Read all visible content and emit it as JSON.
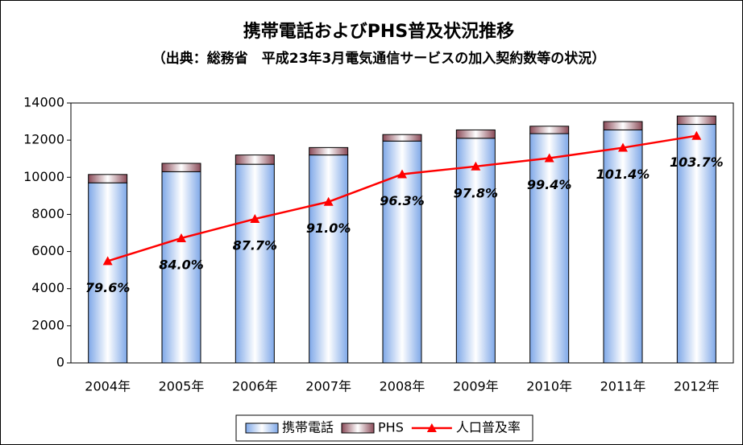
{
  "chart_data": {
    "type": "bar-line",
    "title": "携帯電話およびPHS普及状況推移",
    "subtitle": "（出典：総務省　平成23年3月電気通信サービスの加入契約数等の状況）",
    "categories": [
      "2004年",
      "2005年",
      "2006年",
      "2007年",
      "2008年",
      "2009年",
      "2010年",
      "2011年",
      "2012年"
    ],
    "series": [
      {
        "name": "携帯電話",
        "color": "#c6dcf7",
        "type": "bar",
        "values": [
          9700,
          10300,
          10700,
          11200,
          11950,
          12100,
          12350,
          12550,
          12850
        ]
      },
      {
        "name": "PHS",
        "color": "#c9a0a8",
        "type": "bar",
        "values": [
          450,
          450,
          500,
          400,
          350,
          450,
          400,
          450,
          450
        ]
      },
      {
        "name": "人口普及率",
        "color": "#ff0000",
        "type": "line",
        "axis": "y2",
        "values": [
          79.6,
          84.0,
          87.7,
          91.0,
          96.3,
          97.8,
          99.4,
          101.4,
          103.7
        ],
        "value_labels": [
          "79.6%",
          "84.0%",
          "87.7%",
          "91.0%",
          "96.3%",
          "97.8%",
          "99.4%",
          "101.4%",
          "103.7%"
        ]
      }
    ],
    "ylim": [
      0,
      14000
    ],
    "yticks": [
      0,
      2000,
      4000,
      6000,
      8000,
      10000,
      12000,
      14000
    ],
    "y2lim": [
      60,
      110
    ],
    "grid": false,
    "legend": "bottom"
  }
}
